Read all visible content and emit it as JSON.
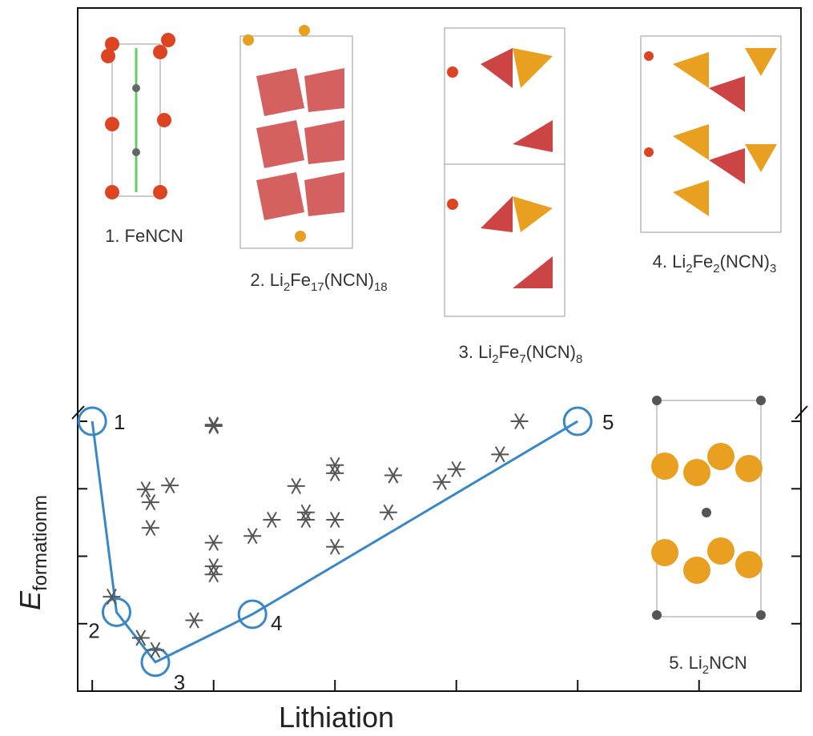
{
  "chart_data": {
    "type": "scatter",
    "xlabel": "Lithiation",
    "ylabel": [
      "E",
      "formationm"
    ],
    "xlim": [
      -0.03,
      1.46
    ],
    "ylim": [
      -4,
      0.25
    ],
    "xticks": [
      0,
      0.25,
      0.5,
      0.75,
      1,
      1.25
    ],
    "yticks": [
      0,
      -1,
      -2,
      -3
    ],
    "series": [
      {
        "color": "#3a87c8",
        "marker": "circle",
        "line": true,
        "x": [
          0,
          0.05,
          0.13,
          0.33,
          1
        ],
        "values": [
          0,
          -2.83,
          -3.57,
          -2.86,
          0
        ],
        "point_labels": [
          "1",
          "2",
          "3",
          "4",
          "5"
        ]
      },
      {
        "color": "#555555",
        "marker": "asterisk",
        "line": false,
        "x": [
          0.25,
          0.25,
          0.11,
          0.12,
          0.16,
          0.12,
          0.04,
          0.1,
          0.13,
          0.21,
          0.25,
          0.25,
          0.25,
          0.33,
          0.37,
          0.42,
          0.44,
          0.44,
          0.5,
          0.5,
          0.5,
          0.5,
          0.62,
          0.62,
          0.61,
          0.72,
          0.75,
          0.84,
          0.88
        ],
        "values": [
          -0.07,
          -0.05,
          -1.01,
          -1.2,
          -0.95,
          -1.58,
          -2.6,
          -3.21,
          -3.39,
          -2.95,
          -1.8,
          -2.15,
          -2.27,
          -1.7,
          -1.46,
          -0.96,
          -1.35,
          -1.46,
          -0.65,
          -0.77,
          -1.46,
          -1.86,
          -0.8,
          -0.8,
          -1.35,
          -0.9,
          -0.71,
          -0.49,
          0
        ]
      }
    ],
    "annotations": [
      [
        "1. FeNCN"
      ],
      [
        "2. Li",
        "2",
        "Fe",
        "17",
        "(NCN)",
        "18"
      ],
      [
        "3. Li",
        "2",
        "Fe",
        "7",
        "(NCN)",
        "8"
      ],
      [
        "4. Li",
        "2",
        "Fe",
        "2",
        "(NCN)",
        "3"
      ],
      [
        "5. Li",
        "2",
        "NCN"
      ]
    ]
  }
}
